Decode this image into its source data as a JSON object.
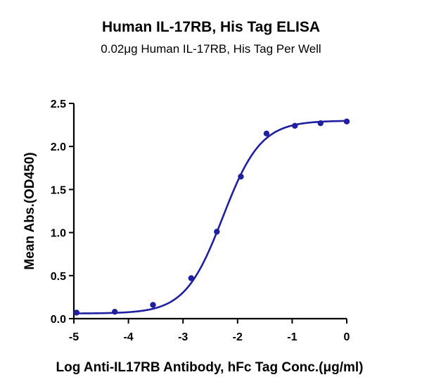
{
  "chart_data": {
    "type": "scatter",
    "title": "Human IL-17RB, His Tag ELISA",
    "subtitle": "0.02μg Human IL-17RB, His Tag Per Well",
    "xlabel": "Log Anti-IL17RB Antibody, hFc Tag Conc.(μg/ml)",
    "ylabel": "Mean Abs.(OD450)",
    "xlim": [
      -5,
      0
    ],
    "ylim": [
      0,
      2.5
    ],
    "x_ticks": [
      "-5",
      "-4",
      "-3",
      "-2",
      "-1",
      "0"
    ],
    "y_ticks": [
      "0.0",
      "0.5",
      "1.0",
      "1.5",
      "2.0",
      "2.5"
    ],
    "grid": false,
    "color": "#1f1fa0",
    "series": [
      {
        "x": [
          -4.95,
          -4.25,
          -3.55,
          -2.85,
          -2.38,
          -1.94,
          -1.47,
          -0.95,
          -0.48,
          0.0
        ],
        "y": [
          0.07,
          0.08,
          0.16,
          0.47,
          1.01,
          1.65,
          2.15,
          2.24,
          2.27,
          2.29
        ]
      }
    ],
    "fit": {
      "bottom": 0.06,
      "top": 2.3,
      "log_ec50": -2.27,
      "hill": 1.25
    }
  }
}
